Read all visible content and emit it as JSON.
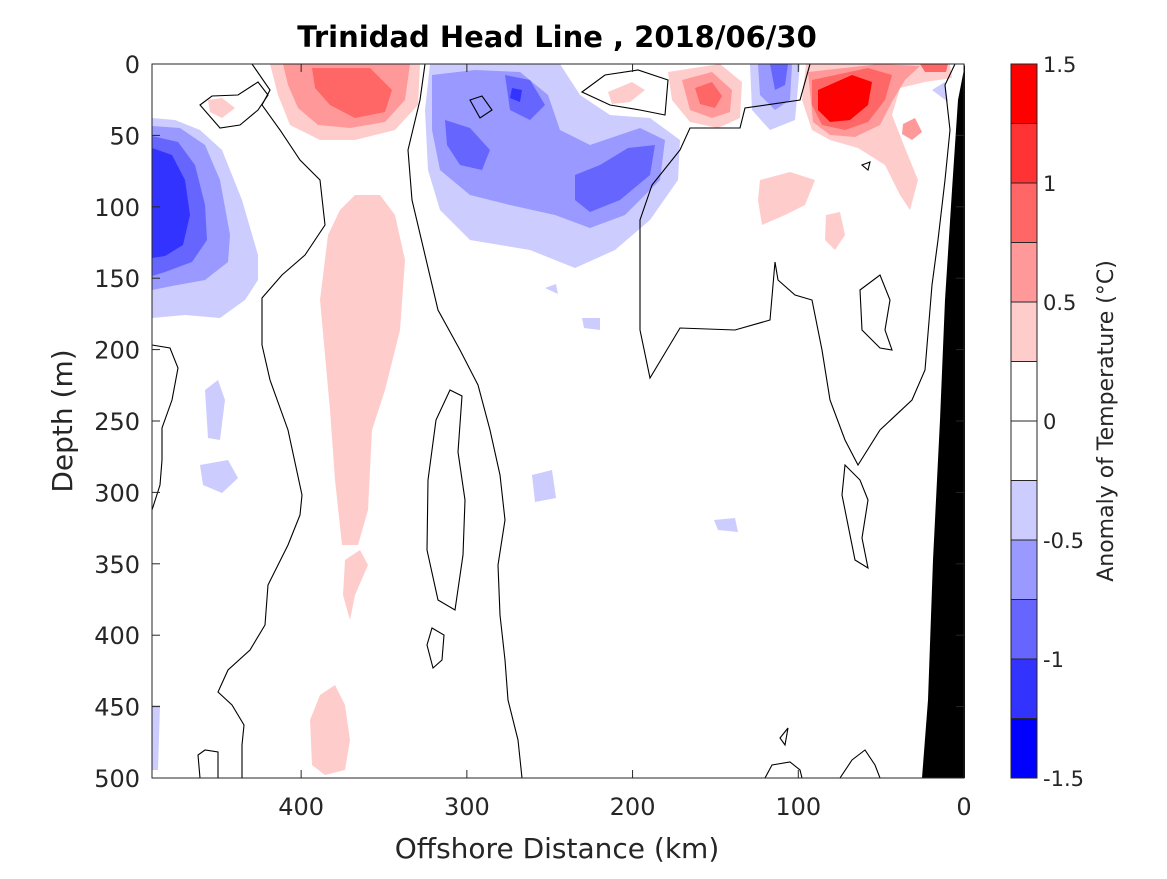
{
  "chart_data": {
    "type": "heatmap",
    "title": "Trinidad Head Line , 2018/06/30",
    "xlabel": "Offshore Distance (km)",
    "ylabel": "Depth (m)",
    "xlim": [
      490,
      0
    ],
    "ylim": [
      0,
      500
    ],
    "x_ticks": [
      400,
      300,
      200,
      100,
      0
    ],
    "y_ticks": [
      0,
      50,
      100,
      150,
      200,
      250,
      300,
      350,
      400,
      450,
      500
    ],
    "grid": false,
    "colorbar": {
      "label": "Anomaly of Temperature (°C)",
      "range": [
        -1.5,
        1.5
      ],
      "ticks": [
        1.5,
        1,
        0.5,
        0,
        -0.5,
        -1,
        -1.5
      ],
      "levels": [
        -1.5,
        -1.25,
        -1.0,
        -0.75,
        -0.5,
        -0.25,
        0.25,
        0.5,
        0.75,
        1.0,
        1.25,
        1.5
      ],
      "colors_top_to_bottom": [
        "#ff0000",
        "#ff3333",
        "#ff6666",
        "#ff9999",
        "#ffcccc",
        "#ffffff",
        "#ffffff",
        "#ccccff",
        "#9999ff",
        "#6666ff",
        "#3333ff",
        "#0000ff"
      ]
    },
    "features": [
      {
        "kind": "cold",
        "level": -1.25,
        "x_km": 480,
        "depth_m": 100,
        "label": "strong cold anomaly near western edge"
      },
      {
        "kind": "cold",
        "level": -0.75,
        "x_km": 305,
        "depth_m": 55
      },
      {
        "kind": "cold",
        "level": -0.75,
        "x_km": 270,
        "depth_m": 20
      },
      {
        "kind": "cold",
        "level": -0.75,
        "x_km": 225,
        "depth_m": 80
      },
      {
        "kind": "cold",
        "level": -0.75,
        "x_km": 110,
        "depth_m": 15
      },
      {
        "kind": "warm",
        "level": 0.75,
        "x_km": 360,
        "depth_m": 25
      },
      {
        "kind": "warm",
        "level": 0.75,
        "x_km": 150,
        "depth_m": 20
      },
      {
        "kind": "warm",
        "level": 1.25,
        "x_km": 72,
        "depth_m": 25
      },
      {
        "kind": "warm",
        "level": 0.25,
        "x_km": 355,
        "depth_m": 250
      },
      {
        "kind": "warm",
        "level": 0.25,
        "x_km": 360,
        "depth_m": 470
      }
    ],
    "bathymetry": {
      "color": "#000000",
      "description": "seafloor near coast"
    }
  }
}
